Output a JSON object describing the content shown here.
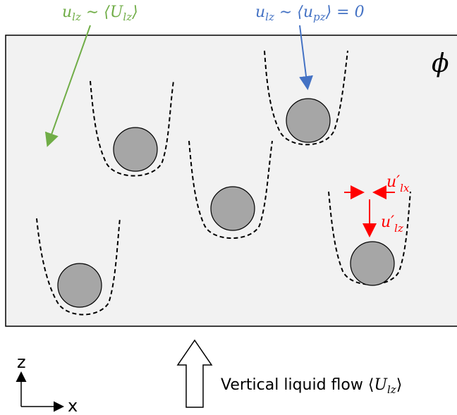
{
  "labels": {
    "green_annotation": "u_lz ∼ ⟨U_lz⟩",
    "blue_annotation": "u_lz ∼ ⟨u_pz⟩ = 0",
    "red_horizontal": "u′_lx",
    "red_vertical": "u′_lz",
    "field_symbol": "ϕ",
    "flow_text": "Vertical liquid flow ⟨U_lz⟩",
    "axis_z": "z",
    "axis_x": "x"
  },
  "colors": {
    "green": "#70ad47",
    "blue": "#4472c4",
    "red": "#ff0000",
    "box_fill": "#f2f2f2",
    "particle": "#a6a6a6"
  },
  "bubbles": [
    {
      "id": "bubble-1"
    },
    {
      "id": "bubble-2"
    },
    {
      "id": "bubble-3"
    },
    {
      "id": "bubble-4"
    },
    {
      "id": "bubble-5"
    }
  ]
}
